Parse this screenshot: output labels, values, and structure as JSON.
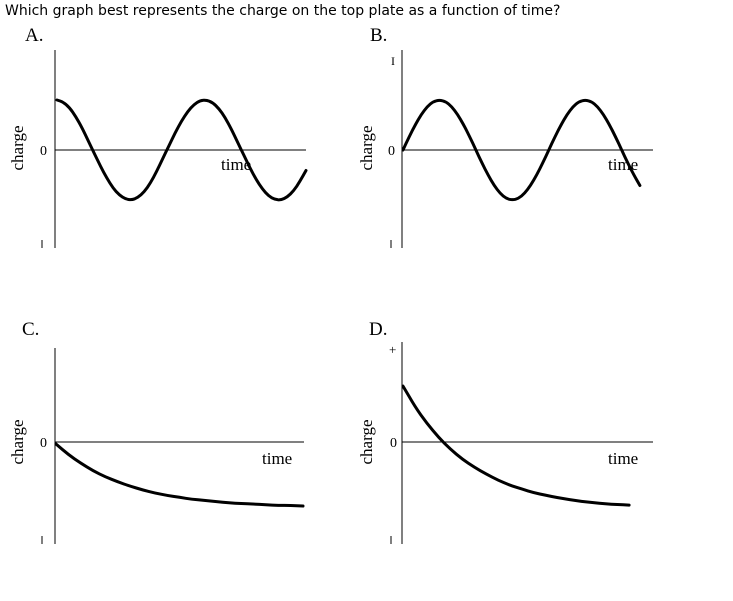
{
  "question": "Which graph best represents the charge on the top plate as a function of time?",
  "chart_data": [
    {
      "type": "line",
      "panel_label": "A.",
      "ylabel": "charge",
      "xlabel": "time",
      "zero_label": "0",
      "top_tick": "",
      "bottom_tick": "",
      "function": "cosine",
      "series": [
        {
          "x": [
            0,
            0.5,
            1,
            1.5,
            2,
            2.5,
            3,
            3.5,
            4,
            4.5,
            5,
            5.5,
            6,
            6.5,
            7,
            7.5,
            8,
            8.5,
            9,
            9.5,
            10,
            10.5,
            11,
            11.5,
            12,
            12.5,
            13,
            13.5,
            14,
            14.5,
            15,
            15.5,
            16,
            16.5,
            17,
            17.5,
            18,
            18.5,
            19,
            19.5,
            20
          ],
          "y": [
            1,
            0.96,
            0.85,
            0.67,
            0.45,
            0.19,
            -0.07,
            -0.33,
            -0.56,
            -0.76,
            -0.9,
            -0.98,
            -1,
            -0.95,
            -0.84,
            -0.66,
            -0.43,
            -0.17,
            0.09,
            0.35,
            0.58,
            0.77,
            0.91,
            0.99,
            1,
            0.95,
            0.83,
            0.65,
            0.42,
            0.16,
            -0.1,
            -0.36,
            -0.59,
            -0.78,
            -0.92,
            -0.99,
            -1,
            -0.94,
            -0.82,
            -0.63,
            -0.41
          ]
        }
      ],
      "xlim": [
        0,
        20
      ],
      "ylim": [
        -1.9,
        1.9
      ]
    },
    {
      "type": "line",
      "panel_label": "B.",
      "ylabel": "charge",
      "xlabel": "time",
      "zero_label": "0",
      "top_tick": "I",
      "bottom_tick": "",
      "function": "sine",
      "series": [
        {
          "x": [
            0,
            0.5,
            1,
            1.5,
            2,
            2.5,
            3,
            3.5,
            4,
            4.5,
            5,
            5.5,
            6,
            6.5,
            7,
            7.5,
            8,
            8.5,
            9,
            9.5,
            10,
            10.5,
            11,
            11.5,
            12,
            12.5,
            13,
            13.5,
            14,
            14.5,
            15,
            15.5,
            16,
            16.5,
            17,
            17.5,
            18,
            18.5,
            19,
            19.5
          ],
          "y": [
            0,
            0.26,
            0.5,
            0.71,
            0.87,
            0.97,
            1,
            0.97,
            0.87,
            0.71,
            0.5,
            0.26,
            0,
            -0.26,
            -0.5,
            -0.71,
            -0.87,
            -0.97,
            -1,
            -0.97,
            -0.87,
            -0.71,
            -0.5,
            -0.26,
            0,
            0.26,
            0.5,
            0.71,
            0.87,
            0.97,
            1,
            0.97,
            0.87,
            0.71,
            0.5,
            0.26,
            0,
            -0.26,
            -0.5,
            -0.71
          ]
        }
      ],
      "xlim": [
        0,
        20
      ],
      "ylim": [
        -1.9,
        1.9
      ]
    },
    {
      "type": "line",
      "panel_label": "C.",
      "ylabel": "charge",
      "xlabel": "time",
      "zero_label": "0",
      "top_tick": "",
      "bottom_tick": "",
      "function": "decay-from-zero-to-negative",
      "series": [
        {
          "x": [
            0,
            1,
            2,
            3,
            4,
            5,
            6,
            7,
            8,
            9,
            10,
            11,
            12,
            13,
            14,
            15,
            16,
            17,
            18,
            19,
            20
          ],
          "y": [
            0,
            -0.17,
            -0.31,
            -0.43,
            -0.53,
            -0.61,
            -0.68,
            -0.74,
            -0.79,
            -0.83,
            -0.86,
            -0.89,
            -0.91,
            -0.93,
            -0.95,
            -0.96,
            -0.97,
            -0.98,
            -0.99,
            -0.99,
            -1
          ]
        }
      ],
      "xlim": [
        0,
        20
      ],
      "ylim": [
        -1.6,
        1.6
      ]
    },
    {
      "type": "line",
      "panel_label": "D.",
      "ylabel": "charge",
      "xlabel": "time",
      "zero_label": "0",
      "top_tick": "+",
      "bottom_tick": "",
      "function": "decay-from-positive-to-negative",
      "series": [
        {
          "x": [
            0,
            1,
            2,
            3,
            4,
            5,
            6,
            7,
            8,
            9,
            10,
            11,
            12,
            13,
            14,
            15,
            16,
            17,
            18,
            19
          ],
          "y": [
            0.95,
            0.62,
            0.35,
            0.12,
            -0.07,
            -0.23,
            -0.36,
            -0.47,
            -0.57,
            -0.65,
            -0.71,
            -0.77,
            -0.81,
            -0.85,
            -0.88,
            -0.91,
            -0.93,
            -0.95,
            -0.96,
            -0.97
          ]
        }
      ],
      "xlim": [
        0,
        20
      ],
      "ylim": [
        -1.6,
        1.6
      ]
    }
  ]
}
